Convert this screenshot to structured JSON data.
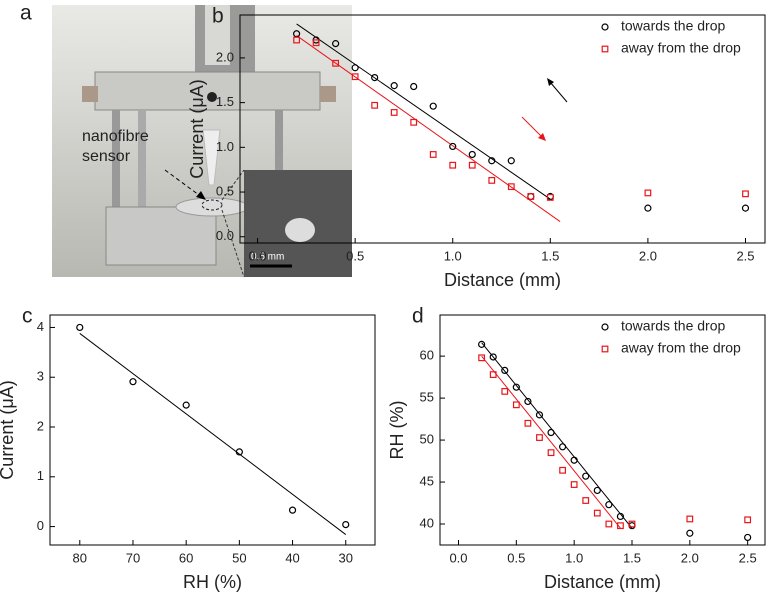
{
  "photo": {
    "label": "a",
    "annotation": [
      "nanofibre",
      "sensor"
    ],
    "scale_bar": "0.5 mm"
  },
  "chart_data": [
    {
      "type": "scatter",
      "panel_label": "b",
      "x_label": "Distance (mm)",
      "y_label": "Current (μA)",
      "xlim": [
        -0.09,
        2.6
      ],
      "ylim": [
        -0.07,
        2.48
      ],
      "xticks": [
        {
          "value": 0,
          "label": "0.0"
        },
        0.5,
        {
          "value": 1,
          "label": "1.0"
        },
        1.5,
        {
          "value": 2,
          "label": "2.0"
        },
        2.5
      ],
      "yticks": [
        {
          "value": 0,
          "label": "0.0"
        },
        0.5,
        {
          "value": 1,
          "label": "1.0"
        },
        1.5,
        {
          "value": 2,
          "label": "2.0"
        }
      ],
      "legend": "upper right",
      "x": [
        0.2,
        0.3,
        0.4,
        0.5,
        0.6,
        0.7,
        0.8,
        0.9,
        1.0,
        1.1,
        1.2,
        1.3,
        1.4,
        1.5,
        2.0,
        2.5
      ],
      "series": [
        {
          "name": "towards the drop",
          "color": "#000000",
          "marker": "circle",
          "values": [
            2.27,
            2.2,
            2.16,
            1.89,
            1.78,
            1.69,
            1.68,
            1.46,
            1.01,
            0.92,
            0.85,
            0.85,
            0.45,
            0.45,
            0.32,
            0.32
          ]
        },
        {
          "name": "away from the drop",
          "color": "#e8161b",
          "marker": "square",
          "values": [
            2.2,
            2.17,
            1.94,
            1.79,
            1.47,
            1.39,
            1.28,
            0.92,
            0.8,
            0.8,
            0.63,
            0.56,
            0.45,
            0.44,
            0.49,
            0.48
          ]
        }
      ],
      "fits": [
        {
          "color": "#000000",
          "x": [
            0.2,
            1.5
          ],
          "values": [
            2.38,
            0.42
          ]
        },
        {
          "color": "#e8161b",
          "x": [
            0.2,
            1.55
          ],
          "values": [
            2.25,
            0.17
          ]
        }
      ]
    },
    {
      "type": "scatter",
      "panel_label": "c",
      "x_label": "RH (%)",
      "y_label": "Current (μA)",
      "xlim": [
        85.6,
        24.5
      ],
      "ylim": [
        -0.37,
        4.25
      ],
      "xticks": [
        80,
        70,
        60,
        50,
        40,
        30
      ],
      "yticks": [
        0,
        1,
        2,
        3,
        4
      ],
      "x": [
        80,
        70,
        60,
        50,
        40,
        30
      ],
      "series": [
        {
          "color": "#000000",
          "marker": "circle",
          "values": [
            4.0,
            2.91,
            2.44,
            1.5,
            0.33,
            0.04
          ]
        }
      ],
      "fits": [
        {
          "color": "#000000",
          "x": [
            80,
            30
          ],
          "values": [
            3.88,
            -0.16
          ]
        }
      ]
    },
    {
      "type": "scatter",
      "panel_label": "d",
      "x_label": "Distance (mm)",
      "y_label": "RH (%)",
      "xlim": [
        -0.16,
        2.65
      ],
      "ylim": [
        37.5,
        64.9
      ],
      "xticks": [
        {
          "value": 0,
          "label": "0.0"
        },
        0.5,
        {
          "value": 1,
          "label": "1.0"
        },
        1.5,
        {
          "value": 2,
          "label": "2.0"
        },
        2.5
      ],
      "yticks": [
        40,
        45,
        50,
        55,
        60
      ],
      "legend": "upper right",
      "x": [
        0.2,
        0.3,
        0.4,
        0.5,
        0.6,
        0.7,
        0.8,
        0.9,
        1.0,
        1.1,
        1.2,
        1.3,
        1.4,
        1.5,
        2.0,
        2.5
      ],
      "series": [
        {
          "name": "towards the drop",
          "color": "#000000",
          "marker": "circle",
          "values": [
            61.4,
            59.9,
            58.3,
            56.3,
            54.6,
            53.0,
            50.9,
            49.2,
            47.6,
            45.7,
            44.0,
            42.3,
            40.9,
            39.8,
            38.9,
            38.4
          ]
        },
        {
          "name": "away from the drop",
          "color": "#e8161b",
          "marker": "square",
          "values": [
            59.8,
            57.8,
            55.8,
            54.2,
            52.0,
            50.3,
            48.5,
            46.4,
            44.7,
            42.8,
            41.3,
            40.0,
            39.8,
            40.0,
            40.6,
            40.5
          ]
        }
      ],
      "fits": [
        {
          "color": "#000000",
          "x": [
            0.2,
            1.5
          ],
          "values": [
            61.6,
            39.5
          ]
        },
        {
          "color": "#e8161b",
          "x": [
            0.2,
            1.4
          ],
          "values": [
            60.0,
            39.5
          ]
        }
      ]
    }
  ]
}
